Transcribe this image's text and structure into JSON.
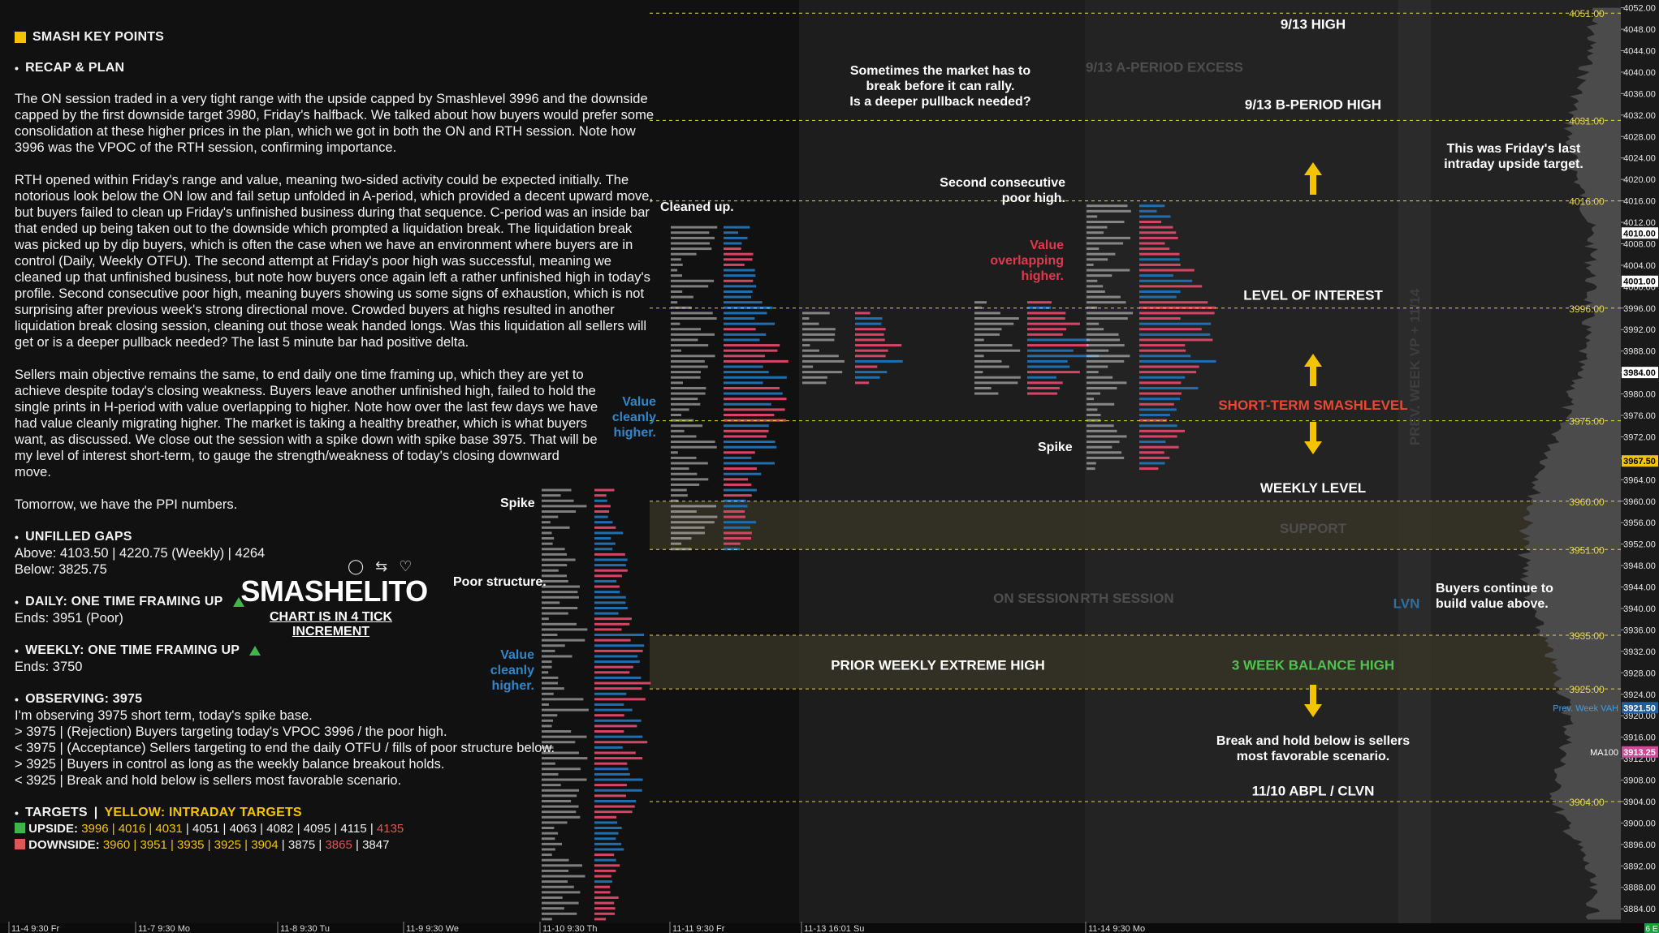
{
  "notes": {
    "title": "SMASH KEY POINTS",
    "recap_title": "RECAP & PLAN",
    "paragraphs": [
      "The ON session traded in a very tight range with the upside capped by Smashlevel 3996 and the downside capped by the first downside target 3980, Friday's halfback. We talked about how buyers would prefer some consolidation at these higher prices in the plan, which we got in both the ON and RTH session. Note how 3996 was the VPOC of the RTH session, confirming importance.",
      "RTH opened within Friday's range and value, meaning two-sided activity could be expected initially. The notorious look below the ON low and fail setup unfolded in A-period, which provided a decent upward move, but buyers failed to clean up Friday's unfinished business during that sequence. C-period was an inside bar that ended up being taken out to the downside which prompted a liquidation break. The liquidation break was picked up by dip buyers, which is often the case when we have an environment where buyers are in control (Daily, Weekly OTFU). The second attempt at Friday's poor high was successful, meaning we cleaned up that unfinished business, but note how buyers once again left a rather unfinished high in today's profile. Second consecutive poor high, meaning buyers showing us some signs of exhaustion, which is not surprising after previous week's strong directional move. Crowded buyers at highs resulted in another liquidation break closing session, cleaning out those weak handed longs. Was this liquidation all sellers will get or is a deeper pullback needed? The last 5 minute bar had positive delta.",
      "Sellers main objective remains the same, to end daily one time framing up, which they are yet to achieve despite today's closing weakness. Buyers leave another unfinished high, failed to hold the single prints in H-period with value overlapping to higher. Note how over the last few days we have had value cleanly migrating higher. The market is taking a healthy breather, which is what buyers want, as discussed. We close out the session with a spike down with spike base 3975. That will be my level of interest short-term, to gauge the strength/weakness of today's closing downward move.",
      "Tomorrow, we have the PPI numbers."
    ],
    "gaps_title": "UNFILLED GAPS",
    "gaps_above": "Above: 4103.50 | 4220.75 (Weekly) | 4264",
    "gaps_below": "Below: 3825.75",
    "daily_title": "DAILY: ONE TIME FRAMING UP",
    "daily_ends": "Ends: 3951 (Poor)",
    "weekly_title": "WEEKLY: ONE TIME FRAMING UP",
    "weekly_ends": "Ends: 3750",
    "observing_title": "OBSERVING: 3975",
    "observing_lines": [
      "I'm observing 3975 short term, today's spike base.",
      "> 3975 | (Rejection) Buyers targeting today's VPOC 3996 / the poor high.",
      "< 3975 | (Acceptance) Sellers targeting to end the daily OTFU / fills of poor structure below.",
      "> 3925 | Buyers in control as long as the weekly balance breakout holds.",
      "< 3925 | Break and hold below is sellers most favorable scenario."
    ],
    "targets_title": "TARGETS",
    "targets_yellow": "YELLOW: INTRADAY TARGETS",
    "upside_label": "UPSIDE:",
    "upside_yellow": "3996 | 4016 | 4031",
    "upside_white": " | 4051 | 4063 | 4082 | 4095 | 4115 | ",
    "upside_red": "4135",
    "downside_label": "DOWNSIDE:",
    "downside_yellow": "3960 | 3951 | 3935 | 3925 | 3904",
    "downside_white": " | 3875 | ",
    "downside_red": "3865",
    "downside_end": " | 3847"
  },
  "brand": {
    "name": "SMASHELITO",
    "subtitle": "CHART IS IN 4 TICK INCREMENT"
  },
  "colors": {
    "yellow": "#f5c400",
    "green": "#3fb54a",
    "red": "#e05555",
    "profile_red": "#d64565",
    "profile_blue": "#1f6fb0",
    "orange": "#f08a1c",
    "accent_blue": "#2f86c8"
  },
  "chart_data": {
    "type": "market-profile",
    "y_axis_ticks": [
      4052.0,
      4048.0,
      4044.0,
      4040.0,
      4036.0,
      4032.0,
      4028.0,
      4024.0,
      4020.0,
      4016.0,
      4012.0,
      4008.0,
      4004.0,
      4000.0,
      3996.0,
      3992.0,
      3988.0,
      3984.0,
      3980.0,
      3976.0,
      3972.0,
      3968.0,
      3964.0,
      3960.0,
      3956.0,
      3952.0,
      3948.0,
      3944.0,
      3940.0,
      3936.0,
      3932.0,
      3928.0,
      3924.0,
      3920.0,
      3916.0,
      3912.0,
      3908.0,
      3904.0,
      3900.0,
      3896.0,
      3892.0,
      3888.0,
      3884.0
    ],
    "ylim": [
      3881,
      4053
    ],
    "tick_decimals": 2,
    "price_boxes": [
      {
        "price": 4010.0,
        "text": "4010.00",
        "style": "white"
      },
      {
        "price": 4001.0,
        "text": "4001.00",
        "style": "white"
      },
      {
        "price": 3984.0,
        "text": "3984.00",
        "style": "white"
      },
      {
        "price": 3967.5,
        "text": "3967.50",
        "style": "yellow"
      },
      {
        "price": 3921.5,
        "text": "3921.50",
        "style": "blue",
        "label": "Prev. Week VAH"
      },
      {
        "price": 3913.25,
        "text": "3913.25",
        "style": "pink",
        "label": "MA100"
      }
    ],
    "levels": [
      {
        "price": 4051.0,
        "text": "4051.00"
      },
      {
        "price": 4031.0,
        "text": "4031.00"
      },
      {
        "price": 4016.0,
        "text": "4016.00"
      },
      {
        "price": 3996.0,
        "text": "3996.00"
      },
      {
        "price": 3975.0,
        "text": "3975.00"
      },
      {
        "price": 3960.0,
        "text": "3960.00"
      },
      {
        "price": 3951.0,
        "text": "3951.00"
      },
      {
        "price": 3935.0,
        "text": "3935.00"
      },
      {
        "price": 3925.0,
        "text": "3925.00"
      },
      {
        "price": 3904.0,
        "text": "3904.00"
      }
    ],
    "zones": [
      {
        "from": 3951.0,
        "to": 3960.0
      },
      {
        "from": 3925.0,
        "to": 3935.0
      }
    ],
    "annotations": [
      {
        "text": "9/13 HIGH",
        "price": 4049,
        "align": "center",
        "style": "white"
      },
      {
        "text": "9/13 A-PERIOD EXCESS",
        "price": 4041,
        "align": "center",
        "style": "dim"
      },
      {
        "text": "9/13 B-PERIOD HIGH",
        "price": 4034,
        "align": "center",
        "style": "white"
      },
      {
        "text": "LEVEL OF INTEREST",
        "price": 3998.5,
        "align": "center",
        "style": "white"
      },
      {
        "text": "SHORT-TERM SMASHLEVEL",
        "price": 3978,
        "align": "center",
        "style": "red"
      },
      {
        "text": "WEEKLY LEVEL",
        "price": 3962.5,
        "align": "center",
        "style": "white"
      },
      {
        "text": "SUPPORT",
        "price": 3955,
        "align": "center",
        "style": "dim"
      },
      {
        "text": "ON SESSION",
        "price": 3942,
        "align": "center",
        "style": "dim"
      },
      {
        "text": "RTH SESSION",
        "price": 3942,
        "align": "center",
        "style": "dim"
      },
      {
        "text": "LVN",
        "price": 3941,
        "align": "center",
        "style": "blue"
      },
      {
        "text": "PRIOR WEEKLY EXTREME HIGH",
        "price": 3929.5,
        "align": "center",
        "style": "white"
      },
      {
        "text": "3 WEEK BALANCE HIGH",
        "price": 3929.5,
        "align": "center",
        "style": "green"
      },
      {
        "text": "11/10 ABPL / CLVN",
        "price": 3906,
        "align": "center",
        "style": "white"
      },
      {
        "text": "PREV. WEEK VP + 11/14",
        "price": 3985,
        "align": "center",
        "style": "vertical"
      }
    ],
    "callouts": [
      {
        "lines": [
          "Sometimes the market has to",
          "break before it can rally.",
          "Is a deeper pullback needed?"
        ],
        "style": "white"
      },
      {
        "lines": [
          "This was Friday's last",
          "intraday upside target."
        ],
        "style": "white"
      },
      {
        "lines": [
          "Cleaned up."
        ],
        "style": "white"
      },
      {
        "lines": [
          "Second consecutive",
          "poor high."
        ],
        "style": "white"
      },
      {
        "lines": [
          "Value",
          "overlapping",
          "higher."
        ],
        "style": "red"
      },
      {
        "lines": [
          "Value",
          "cleanly",
          "higher."
        ],
        "style": "blue"
      },
      {
        "lines": [
          "Value",
          "cleanly",
          "higher."
        ],
        "style": "blue"
      },
      {
        "lines": [
          "Spike"
        ],
        "style": "white"
      },
      {
        "lines": [
          "Spike"
        ],
        "style": "white"
      },
      {
        "lines": [
          "Poor structure."
        ],
        "style": "white"
      },
      {
        "lines": [
          "Buyers continue to",
          "build value above."
        ],
        "style": "white"
      },
      {
        "lines": [
          "Break and hold below is sellers",
          "most favorable scenario."
        ],
        "style": "white"
      }
    ],
    "x_axis_labels": [
      "11-4  9:30 Fr",
      "11-7  9:30 Mo",
      "11-8  9:30 Tu",
      "11-9  9:30 We",
      "11-10  9:30 Th",
      "11-11  9:30 Fr",
      "11-13  16:01 Su",
      "11-14  9:30 Mo"
    ],
    "corner_badge": "6 E"
  }
}
